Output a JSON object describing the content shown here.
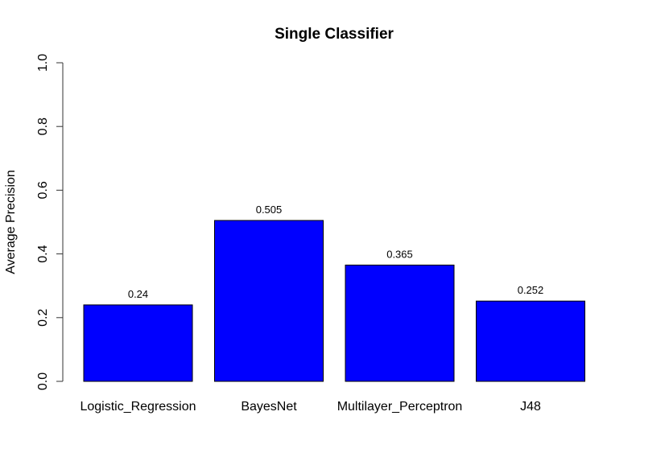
{
  "chart_data": {
    "type": "bar",
    "title": "Single Classifier",
    "xlabel": "",
    "ylabel": "Average Precision",
    "categories": [
      "Logistic_Regression",
      "BayesNet",
      "Multilayer_Perceptron",
      "J48"
    ],
    "values": [
      0.24,
      0.505,
      0.365,
      0.252
    ],
    "value_labels": [
      "0.24",
      "0.505",
      "0.365",
      "0.252"
    ],
    "ylim": [
      0,
      1
    ],
    "yticks": [
      "0.0",
      "0.2",
      "0.4",
      "0.6",
      "0.8",
      "1.0"
    ],
    "bar_color": "#0000ff",
    "grid": false,
    "legend": "none"
  }
}
